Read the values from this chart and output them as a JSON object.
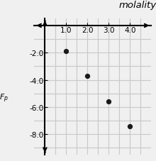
{
  "title": "molality",
  "ylabel": "$F_p$",
  "x_data": [
    1.0,
    2.0,
    3.0,
    4.0
  ],
  "y_data": [
    -1.86,
    -3.72,
    -5.58,
    -7.44
  ],
  "x_ticks": [
    1.0,
    2.0,
    3.0,
    4.0
  ],
  "y_ticks": [
    -2.0,
    -4.0,
    -6.0,
    -8.0
  ],
  "xlim": [
    -0.5,
    5.0
  ],
  "ylim": [
    -9.5,
    0.5
  ],
  "dot_color": "#1a1a1a",
  "dot_size": 18,
  "grid_color": "#c8c8c8",
  "background_color": "#f0f0f0",
  "tick_fontsize": 7.5,
  "title_fontsize": 9.5,
  "ylabel_fontsize": 8
}
